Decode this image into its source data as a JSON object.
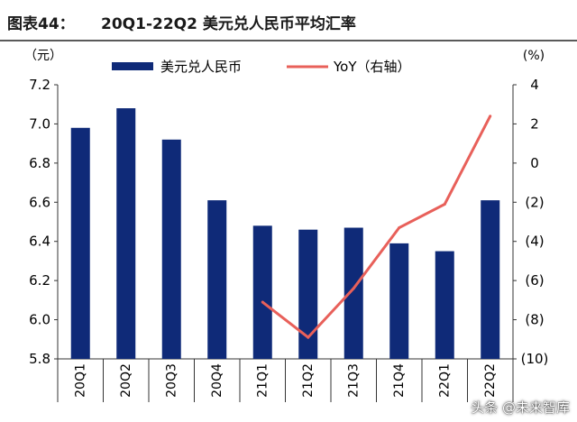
{
  "header": {
    "figure_label": "图表44：",
    "figure_title": "20Q1-22Q2 美元兑人民币平均汇率"
  },
  "watermark": "头条 @未来智库",
  "colors": {
    "bar": "#0f2a78",
    "line": "#e8605a",
    "axis": "#333333",
    "rule": "#5a5a5a"
  },
  "chart_data": {
    "type": "bar",
    "categories": [
      "20Q1",
      "20Q2",
      "20Q3",
      "20Q4",
      "21Q1",
      "21Q2",
      "21Q3",
      "21Q4",
      "22Q1",
      "22Q2"
    ],
    "series": [
      {
        "name": "美元兑人民币",
        "type": "bar",
        "axis": "left",
        "values": [
          6.98,
          7.08,
          6.92,
          6.61,
          6.48,
          6.46,
          6.47,
          6.39,
          6.35,
          6.61
        ]
      },
      {
        "name": "YoY（右轴）",
        "type": "line",
        "axis": "right",
        "values": [
          null,
          null,
          null,
          null,
          -7.1,
          -8.9,
          -6.4,
          -3.3,
          -2.1,
          2.4
        ]
      }
    ],
    "y_left": {
      "unit": "（元）",
      "ylim": [
        5.8,
        7.2
      ],
      "ticks": [
        "7.2",
        "7.0",
        "6.8",
        "6.6",
        "6.4",
        "6.2",
        "6.0",
        "5.8"
      ],
      "tick_values": [
        7.2,
        7.0,
        6.8,
        6.6,
        6.4,
        6.2,
        6.0,
        5.8
      ]
    },
    "y_right": {
      "unit": "(%)",
      "ylim": [
        -10,
        4
      ],
      "ticks": [
        "4",
        "2",
        "0",
        "(2)",
        "(4)",
        "(6)",
        "(8)",
        "(10)"
      ],
      "tick_values": [
        4,
        2,
        0,
        -2,
        -4,
        -6,
        -8,
        -10
      ]
    },
    "legend_position": "top",
    "grid": false
  }
}
